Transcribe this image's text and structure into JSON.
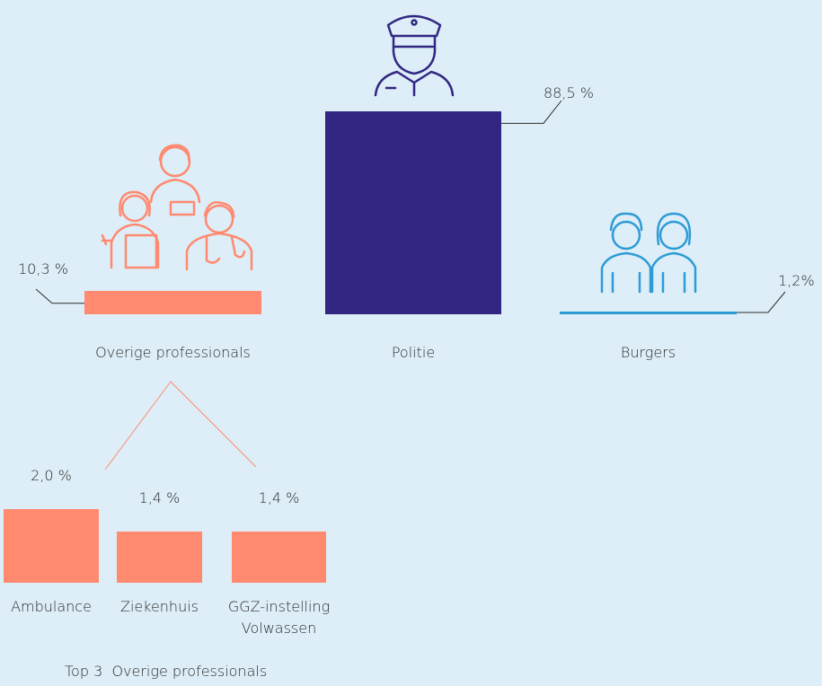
{
  "chart_data": [
    {
      "type": "bar",
      "categories": [
        "Overige professionals",
        "Politie",
        "Burgers"
      ],
      "values": [
        10.3,
        88.5,
        1.2
      ],
      "value_labels": [
        "10,3 %",
        "88,5 %",
        "1,2%"
      ],
      "colors": [
        "#ff8a70",
        "#312783",
        "#2e9bd6"
      ]
    },
    {
      "type": "bar",
      "title": "Top 3  Overige professionals",
      "categories": [
        "Ambulance",
        "Ziekenhuis",
        "GGZ-instelling Volwassen"
      ],
      "values": [
        2.0,
        1.4,
        1.4
      ],
      "value_labels": [
        "2,0 %",
        "1,4 %",
        "1,4 %"
      ],
      "color": "#ff8a70"
    }
  ]
}
